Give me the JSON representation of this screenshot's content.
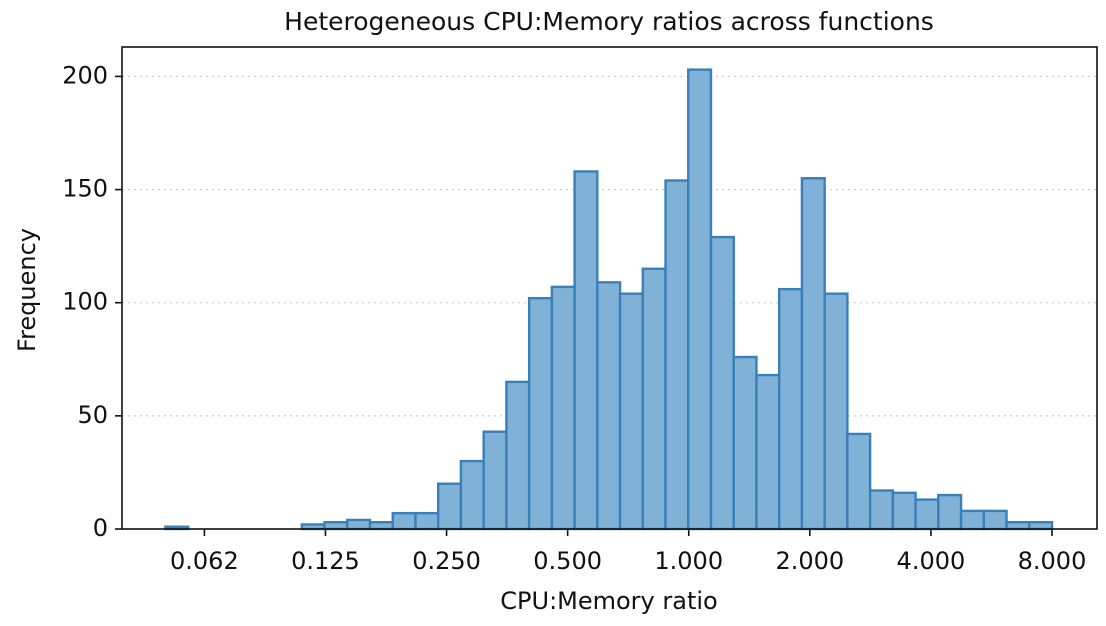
{
  "chart_data": {
    "type": "histogram",
    "title": "Heterogeneous CPU:Memory ratios across functions",
    "x_label": "CPU:Memory ratio",
    "y_label": "Frequency",
    "bins": [
      0.05,
      0.05695,
      0.06486,
      0.07388,
      0.08414,
      0.09584,
      0.10916,
      0.12433,
      0.14161,
      0.16129,
      0.1837,
      0.20923,
      0.23831,
      0.27143,
      0.30916,
      0.35213,
      0.40107,
      0.4568,
      0.52029,
      0.5926,
      0.67496,
      0.76876,
      0.8756,
      0.99729,
      1.13589,
      1.29376,
      1.47356,
      1.67834,
      1.91159,
      2.17726,
      2.47985,
      2.82449,
      3.21703,
      3.66413,
      4.17335,
      4.75334,
      5.41395,
      6.16637,
      7.02334,
      8.0
    ],
    "values": [
      1,
      0,
      0,
      0,
      0,
      0,
      2,
      3,
      4,
      3,
      7,
      7,
      20,
      30,
      43,
      65,
      102,
      107,
      158,
      109,
      104,
      115,
      154,
      203,
      129,
      76,
      68,
      106,
      155,
      104,
      42,
      17,
      16,
      13,
      15,
      8,
      8,
      3,
      3
    ],
    "color": "#7fb2d6",
    "edge_color": "#3a7fb8",
    "xscale": "log",
    "xlim": [
      0.039,
      10.35
    ],
    "xticks": [
      {
        "value": 0.0625,
        "label": "0.062"
      },
      0.125,
      {
        "value": 0.25,
        "label": "0.250"
      },
      {
        "value": 0.5,
        "label": "0.500"
      },
      {
        "value": 1,
        "label": "1.000"
      },
      {
        "value": 2,
        "label": "2.000"
      },
      {
        "value": 4,
        "label": "4.000"
      },
      {
        "value": 8,
        "label": "8.000"
      }
    ],
    "ylim": [
      0,
      213
    ],
    "yticks": [
      0,
      50,
      100,
      150,
      200
    ],
    "grid": true
  }
}
